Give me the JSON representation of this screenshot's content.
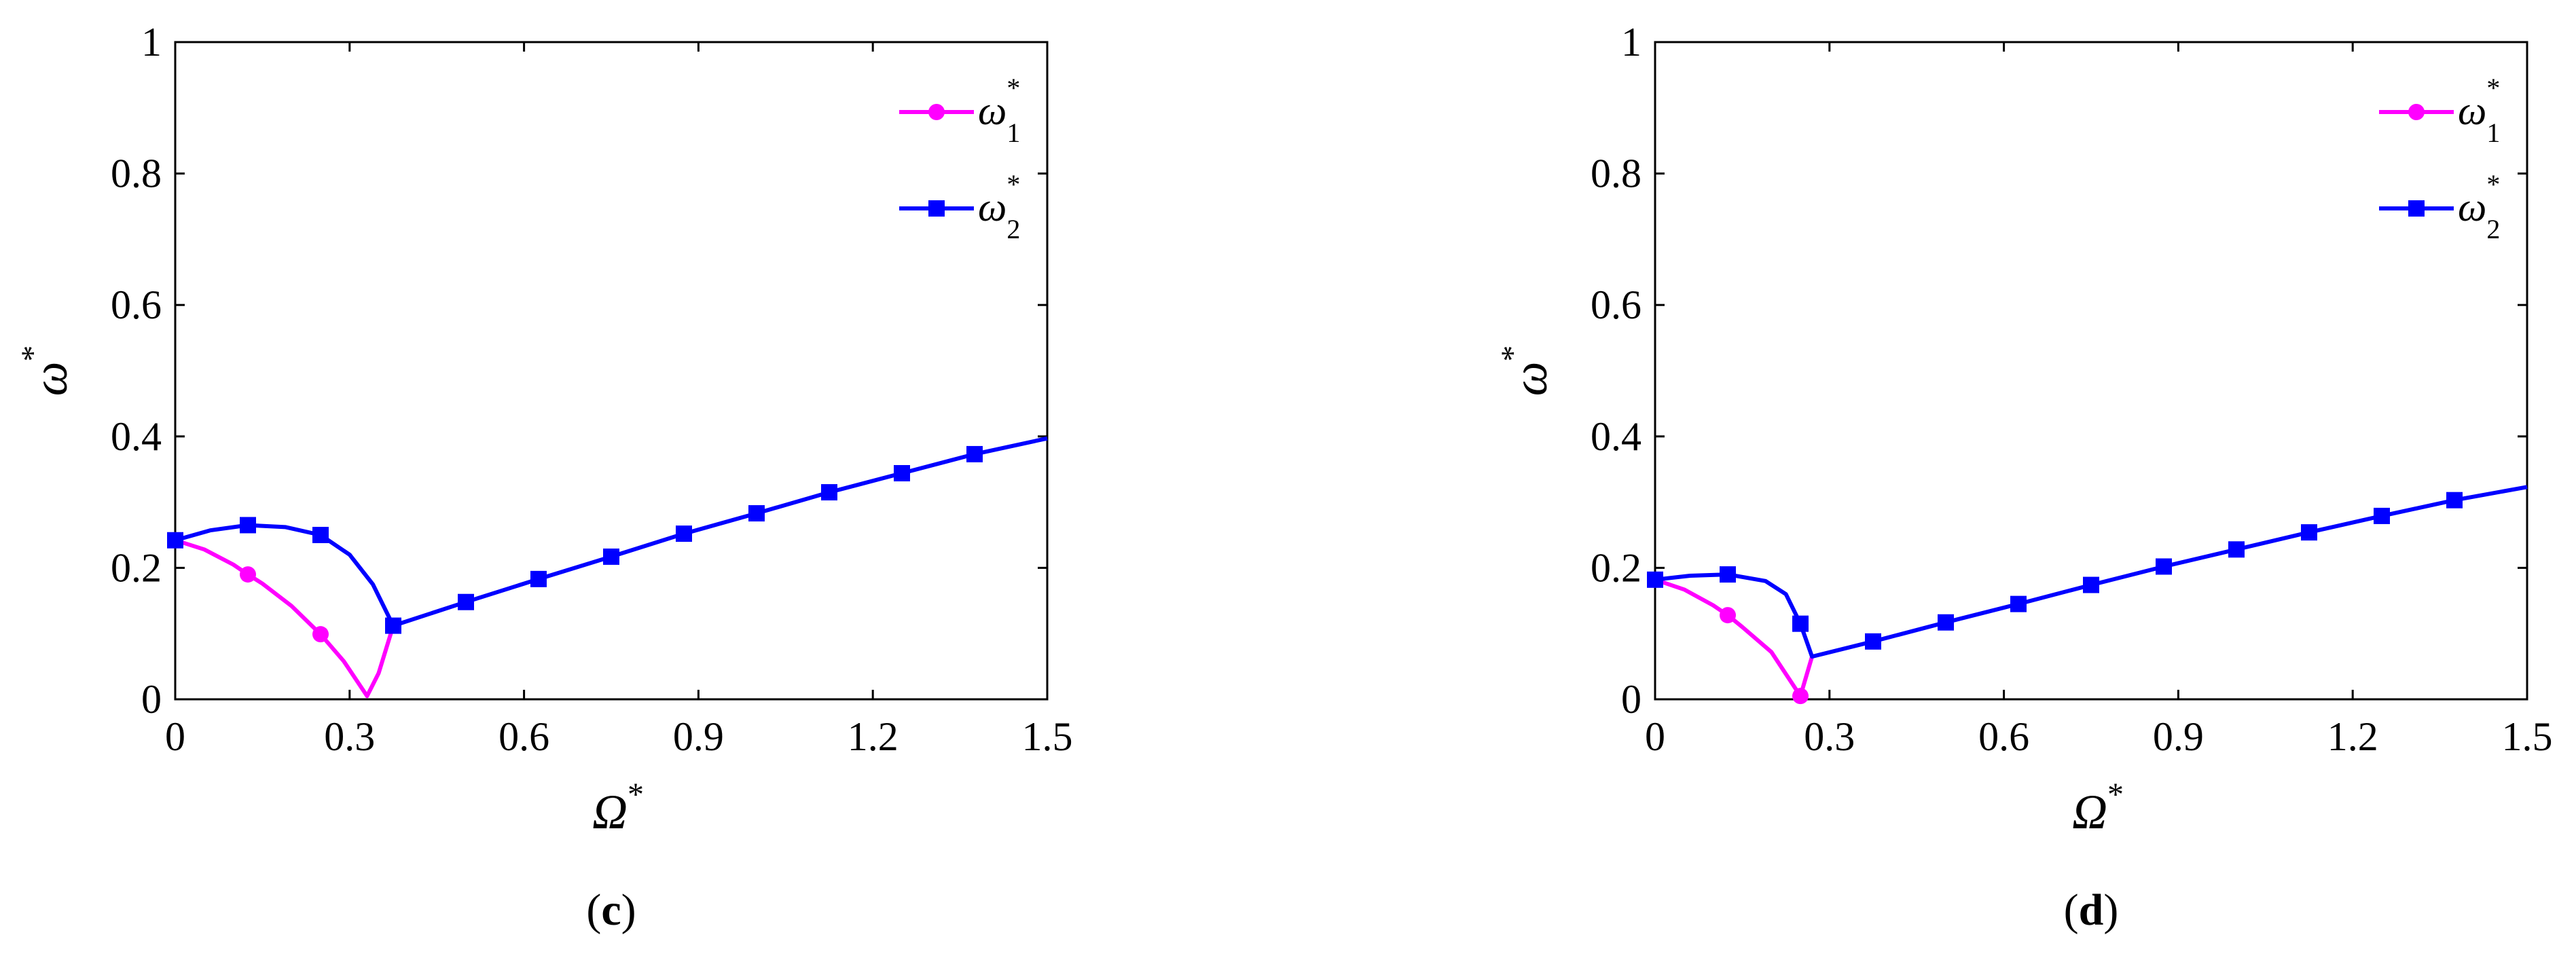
{
  "chart_data": [
    {
      "type": "line",
      "panel_label": "c",
      "xlabel": "Ω",
      "xlabel_sup": "*",
      "ylabel": "ω",
      "ylabel_sup": "*",
      "xlim": [
        0,
        1.5
      ],
      "ylim": [
        0,
        1
      ],
      "xticks": [
        0,
        0.3,
        0.6,
        0.9,
        1.2,
        1.5
      ],
      "xtick_labels": [
        "0",
        "0.3",
        "0.6",
        "0.9",
        "1.2",
        "1.5"
      ],
      "yticks": [
        0,
        0.2,
        0.4,
        0.6,
        0.8,
        1
      ],
      "ytick_labels": [
        "0",
        "0.2",
        "0.4",
        "0.6",
        "0.8",
        "1"
      ],
      "grid": false,
      "legend_position": "top-right",
      "series": [
        {
          "name": "ω",
          "name_sub": "1",
          "name_sup": "*",
          "color": "#ff00ff",
          "marker": "circle",
          "line": [
            [
              0,
              0.242
            ],
            [
              0.05,
              0.228
            ],
            [
              0.1,
              0.205
            ],
            [
              0.125,
              0.19
            ],
            [
              0.15,
              0.176
            ],
            [
              0.2,
              0.142
            ],
            [
              0.25,
              0.099
            ],
            [
              0.29,
              0.058
            ],
            [
              0.33,
              0.005
            ],
            [
              0.35,
              0.04
            ],
            [
              0.375,
              0.112
            ]
          ],
          "markers": [
            [
              0,
              0.242
            ],
            [
              0.125,
              0.19
            ],
            [
              0.25,
              0.099
            ]
          ]
        },
        {
          "name": "ω",
          "name_sub": "2",
          "name_sup": "*",
          "color": "#0000ff",
          "marker": "square",
          "line": [
            [
              0,
              0.242
            ],
            [
              0.06,
              0.257
            ],
            [
              0.125,
              0.265
            ],
            [
              0.19,
              0.262
            ],
            [
              0.25,
              0.25
            ],
            [
              0.3,
              0.22
            ],
            [
              0.34,
              0.175
            ],
            [
              0.375,
              0.112
            ],
            [
              0.5,
              0.148
            ],
            [
              0.625,
              0.183
            ],
            [
              0.75,
              0.217
            ],
            [
              0.875,
              0.252
            ],
            [
              1.0,
              0.283
            ],
            [
              1.125,
              0.315
            ],
            [
              1.25,
              0.344
            ],
            [
              1.375,
              0.373
            ],
            [
              1.5,
              0.397
            ]
          ],
          "markers": [
            [
              0,
              0.242
            ],
            [
              0.125,
              0.265
            ],
            [
              0.25,
              0.25
            ],
            [
              0.375,
              0.112
            ],
            [
              0.5,
              0.148
            ],
            [
              0.625,
              0.183
            ],
            [
              0.75,
              0.217
            ],
            [
              0.875,
              0.252
            ],
            [
              1.0,
              0.283
            ],
            [
              1.125,
              0.315
            ],
            [
              1.25,
              0.344
            ],
            [
              1.375,
              0.373
            ]
          ]
        }
      ]
    },
    {
      "type": "line",
      "panel_label": "d",
      "xlabel": "Ω",
      "xlabel_sup": "*",
      "ylabel": "ω",
      "ylabel_sup": "*",
      "xlim": [
        0,
        1.5
      ],
      "ylim": [
        0,
        1
      ],
      "xticks": [
        0,
        0.3,
        0.6,
        0.9,
        1.2,
        1.5
      ],
      "xtick_labels": [
        "0",
        "0.3",
        "0.6",
        "0.9",
        "1.2",
        "1.5"
      ],
      "yticks": [
        0,
        0.2,
        0.4,
        0.6,
        0.8,
        1
      ],
      "ytick_labels": [
        "0",
        "0.2",
        "0.4",
        "0.6",
        "0.8",
        "1"
      ],
      "grid": false,
      "legend_position": "top-right",
      "series": [
        {
          "name": "ω",
          "name_sub": "1",
          "name_sup": "*",
          "color": "#ff00ff",
          "marker": "circle",
          "line": [
            [
              0,
              0.182
            ],
            [
              0.05,
              0.167
            ],
            [
              0.1,
              0.143
            ],
            [
              0.125,
              0.128
            ],
            [
              0.15,
              0.11
            ],
            [
              0.2,
              0.072
            ],
            [
              0.25,
              0.005
            ],
            [
              0.27,
              0.065
            ]
          ],
          "markers": [
            [
              0,
              0.182
            ],
            [
              0.125,
              0.128
            ],
            [
              0.25,
              0.005
            ]
          ]
        },
        {
          "name": "ω",
          "name_sub": "2",
          "name_sup": "*",
          "color": "#0000ff",
          "marker": "square",
          "line": [
            [
              0,
              0.182
            ],
            [
              0.06,
              0.188
            ],
            [
              0.125,
              0.19
            ],
            [
              0.19,
              0.18
            ],
            [
              0.225,
              0.16
            ],
            [
              0.25,
              0.115
            ],
            [
              0.27,
              0.065
            ],
            [
              0.375,
              0.088
            ],
            [
              0.5,
              0.117
            ],
            [
              0.625,
              0.145
            ],
            [
              0.75,
              0.174
            ],
            [
              0.875,
              0.202
            ],
            [
              1.0,
              0.228
            ],
            [
              1.125,
              0.254
            ],
            [
              1.25,
              0.279
            ],
            [
              1.375,
              0.303
            ],
            [
              1.5,
              0.323
            ]
          ],
          "markers": [
            [
              0,
              0.182
            ],
            [
              0.125,
              0.19
            ],
            [
              0.25,
              0.115
            ],
            [
              0.375,
              0.088
            ],
            [
              0.5,
              0.117
            ],
            [
              0.625,
              0.145
            ],
            [
              0.75,
              0.174
            ],
            [
              0.875,
              0.202
            ],
            [
              1.0,
              0.228
            ],
            [
              1.125,
              0.254
            ],
            [
              1.25,
              0.279
            ],
            [
              1.375,
              0.303
            ]
          ]
        }
      ]
    }
  ]
}
